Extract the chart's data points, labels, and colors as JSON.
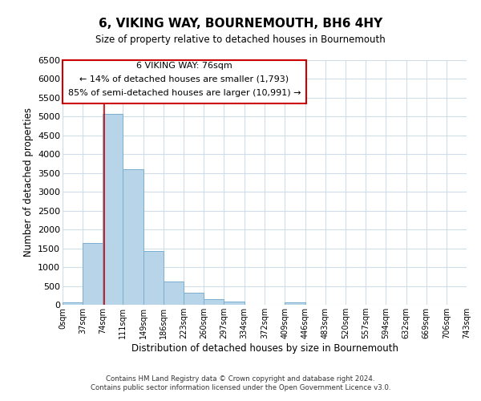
{
  "title": "6, VIKING WAY, BOURNEMOUTH, BH6 4HY",
  "subtitle": "Size of property relative to detached houses in Bournemouth",
  "xlabel": "Distribution of detached houses by size in Bournemouth",
  "ylabel": "Number of detached properties",
  "bar_color": "#b8d4e8",
  "bar_edgecolor": "#7aaed0",
  "vline_color": "#cc0000",
  "vline_x": 76,
  "annotation_title": "6 VIKING WAY: 76sqm",
  "annotation_line1": "← 14% of detached houses are smaller (1,793)",
  "annotation_line2": "85% of semi-detached houses are larger (10,991) →",
  "annotation_box_color": "#cc0000",
  "bin_edges": [
    0,
    37,
    74,
    111,
    149,
    186,
    223,
    260,
    297,
    334,
    372,
    409,
    446,
    483,
    520,
    557,
    594,
    632,
    669,
    706,
    743
  ],
  "bar_heights": [
    60,
    1650,
    5080,
    3600,
    1430,
    620,
    310,
    155,
    80,
    0,
    0,
    60,
    0,
    0,
    0,
    0,
    0,
    0,
    0,
    0
  ],
  "ylim": [
    0,
    6500
  ],
  "xlim": [
    0,
    743
  ],
  "tick_labels": [
    "0sqm",
    "37sqm",
    "74sqm",
    "111sqm",
    "149sqm",
    "186sqm",
    "223sqm",
    "260sqm",
    "297sqm",
    "334sqm",
    "372sqm",
    "409sqm",
    "446sqm",
    "483sqm",
    "520sqm",
    "557sqm",
    "594sqm",
    "632sqm",
    "669sqm",
    "706sqm",
    "743sqm"
  ],
  "footer_line1": "Contains HM Land Registry data © Crown copyright and database right 2024.",
  "footer_line2": "Contains public sector information licensed under the Open Government Licence v3.0.",
  "background_color": "#ffffff",
  "grid_color": "#d0dce8"
}
